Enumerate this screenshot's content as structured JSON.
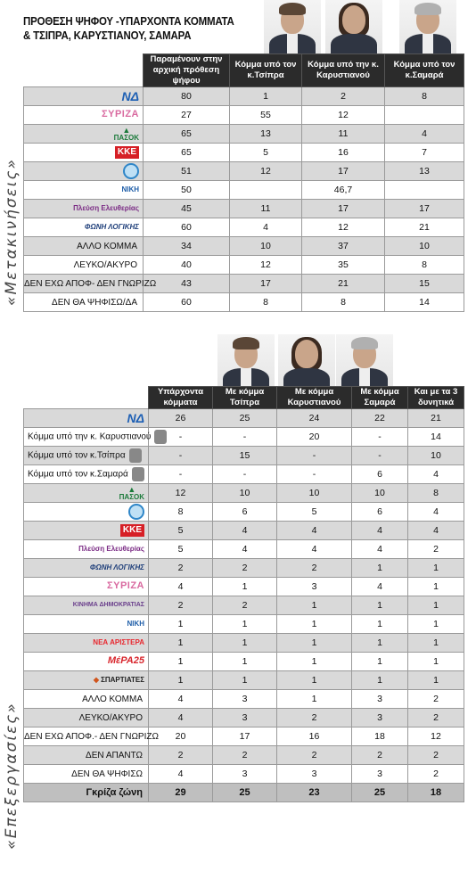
{
  "title_line1": "ΠΡΟΘΕΣΗ ΨΗΦΟΥ -ΥΠΑΡΧΟΝΤΑ ΚΟΜΜΑΤΑ",
  "title_line2": "& ΤΣΙΠΡΑ, ΚΑΡΥΣΤΙΑΝΟΥ, ΣΑΜΑΡΑ",
  "side_label_1": "«Μετακινήσεις»",
  "side_label_2": "«Επεξεργασίες»",
  "table1": {
    "headers": [
      "Παραμένουν στην αρχική πρόθεση ψήφου",
      "Κόμμα υπό τον κ.Τσίπρα",
      "Κόμμα υπό την κ. Καρυστιανού",
      "Κόμμα υπό τον κ.Σαμαρά"
    ],
    "rows": [
      {
        "label": "ΝΔ",
        "logo": "nd-logo",
        "values": [
          "80",
          "1",
          "2",
          "8"
        ]
      },
      {
        "label": "ΣΥΡΙΖΑ",
        "logo": "syriza-logo",
        "values": [
          "27",
          "55",
          "12",
          ""
        ]
      },
      {
        "label": "ΠΑΣΟΚ",
        "logo": "pasok-logo",
        "values": [
          "65",
          "13",
          "11",
          "4"
        ]
      },
      {
        "label": "ΚΚΕ",
        "logo": "kke-logo",
        "values": [
          "65",
          "5",
          "16",
          "7"
        ]
      },
      {
        "label": "ΕΛΛΗΝΙΚΗ ΛΥΣΗ",
        "logo": "elliniki-lysi-logo",
        "values": [
          "51",
          "12",
          "17",
          "13"
        ]
      },
      {
        "label": "ΝΙΚΗ",
        "logo": "niki-logo",
        "values": [
          "50",
          "",
          "46,7",
          ""
        ]
      },
      {
        "label": "Πλεύση Ελευθερίας",
        "logo": "plefsi-logo",
        "values": [
          "45",
          "11",
          "17",
          "17"
        ]
      },
      {
        "label": "ΦΩΝΗ ΛΟΓΙΚΗΣ",
        "logo": "foni-logikis-logo",
        "values": [
          "60",
          "4",
          "12",
          "21"
        ]
      },
      {
        "label": "ΑΛΛΟ ΚΟΜΜΑ",
        "logo": "",
        "values": [
          "34",
          "10",
          "37",
          "10"
        ]
      },
      {
        "label": "ΛΕΥΚΟ/ΑΚΥΡΟ",
        "logo": "",
        "values": [
          "40",
          "12",
          "35",
          "8"
        ]
      },
      {
        "label": "ΔΕΝ ΕΧΩ ΑΠΟΦ- ΔΕΝ ΓΝΩΡΙΖΩ",
        "logo": "",
        "values": [
          "43",
          "17",
          "21",
          "15"
        ]
      },
      {
        "label": "ΔΕΝ ΘΑ ΨΗΦΙΣΩ/ΔΑ",
        "logo": "",
        "values": [
          "60",
          "8",
          "8",
          "14"
        ]
      }
    ]
  },
  "table2": {
    "headers": [
      "Υπάρχοντα κόμματα",
      "Με κόμμα Τσίπρα",
      "Με κόμμα Καρυστιανού",
      "Με κόμμα Σαμαρά",
      "Και με τα 3 δυνητικά"
    ],
    "rows": [
      {
        "label": "ΝΔ",
        "logo": "nd-logo",
        "values": [
          "26",
          "25",
          "24",
          "22",
          "21"
        ]
      },
      {
        "label": "Κόμμα υπό την κ. Καρυστιανού",
        "logo": "",
        "values": [
          "-",
          "-",
          "20",
          "-",
          "14"
        ]
      },
      {
        "label": "Κόμμα υπό τον κ.Τσίπρα",
        "logo": "",
        "values": [
          "-",
          "15",
          "-",
          "-",
          "10"
        ]
      },
      {
        "label": "Κόμμα υπό τον κ.Σαμαρά",
        "logo": "",
        "values": [
          "-",
          "-",
          "-",
          "6",
          "4"
        ]
      },
      {
        "label": "ΠΑΣΟΚ",
        "logo": "pasok-logo",
        "values": [
          "12",
          "10",
          "10",
          "10",
          "8"
        ]
      },
      {
        "label": "ΕΛΛΗΝΙΚΗ ΛΥΣΗ",
        "logo": "elliniki-lysi-logo",
        "values": [
          "8",
          "6",
          "5",
          "6",
          "4"
        ]
      },
      {
        "label": "ΚΚΕ",
        "logo": "kke-logo",
        "values": [
          "5",
          "4",
          "4",
          "4",
          "4"
        ]
      },
      {
        "label": "Πλεύση Ελευθερίας",
        "logo": "plefsi-logo",
        "values": [
          "5",
          "4",
          "4",
          "4",
          "2"
        ]
      },
      {
        "label": "ΦΩΝΗ ΛΟΓΙΚΗΣ",
        "logo": "foni-logikis-logo",
        "values": [
          "2",
          "2",
          "2",
          "1",
          "1"
        ]
      },
      {
        "label": "ΣΥΡΙΖΑ",
        "logo": "syriza-logo",
        "values": [
          "4",
          "1",
          "3",
          "4",
          "1"
        ]
      },
      {
        "label": "ΚΙΝΗΜΑ ΔΗΜΟΚΡΑΤΙΑΣ",
        "logo": "kinima-logo",
        "values": [
          "2",
          "2",
          "1",
          "1",
          "1"
        ]
      },
      {
        "label": "ΝΙΚΗ",
        "logo": "niki-logo",
        "values": [
          "1",
          "1",
          "1",
          "1",
          "1"
        ]
      },
      {
        "label": "ΝΕΑ ΑΡΙΣΤΕΡΑ",
        "logo": "nea-aristera-logo",
        "values": [
          "1",
          "1",
          "1",
          "1",
          "1"
        ]
      },
      {
        "label": "ΜέΡΑ25",
        "logo": "mera25-logo",
        "values": [
          "1",
          "1",
          "1",
          "1",
          "1"
        ]
      },
      {
        "label": "ΣΠΑΡΤΙΑΤΕΣ",
        "logo": "spartiates-logo",
        "values": [
          "1",
          "1",
          "1",
          "1",
          "1"
        ]
      },
      {
        "label": "ΑΛΛΟ ΚΟΜΜΑ",
        "logo": "",
        "values": [
          "4",
          "3",
          "1",
          "3",
          "2"
        ]
      },
      {
        "label": "ΛΕΥΚΟ/ΑΚΥΡΟ",
        "logo": "",
        "values": [
          "4",
          "3",
          "2",
          "3",
          "2"
        ]
      },
      {
        "label": "ΔΕΝ ΕΧΩ ΑΠΟΦ.- ΔΕΝ ΓΝΩΡΙΖΩ",
        "logo": "",
        "values": [
          "20",
          "17",
          "16",
          "18",
          "12"
        ]
      },
      {
        "label": "ΔΕΝ ΑΠΑΝΤΩ",
        "logo": "",
        "values": [
          "2",
          "2",
          "2",
          "2",
          "2"
        ]
      },
      {
        "label": "ΔΕΝ ΘΑ ΨΗΦΙΣΩ",
        "logo": "",
        "values": [
          "4",
          "3",
          "3",
          "3",
          "2"
        ]
      }
    ],
    "total": {
      "label": "Γκρίζα ζώνη",
      "values": [
        "29",
        "25",
        "23",
        "25",
        "18"
      ]
    }
  },
  "logo_text": {
    "nd-logo": "ΝΔ",
    "syriza-logo": "ΣΥΡΙΖΑ",
    "pasok-logo": "ΠΑΣΟΚ",
    "kke-logo": "ΚΚΕ",
    "elliniki-lysi-logo": "",
    "niki-logo": "ΝΙΚΗ",
    "plefsi-logo": "Πλεύση Ελευθερίας",
    "foni-logikis-logo": "ΦΩΝΗ ΛΟΓΙΚΗΣ",
    "kinima-logo": "ΚΙΝΗΜΑ ΔΗΜΟΚΡΑΤΙΑΣ",
    "nea-aristera-logo": "ΝΕΑ ΑΡΙΣΤΕΡΑ",
    "mera25-logo": "ΜέΡΑ25",
    "spartiates-logo": "ΣΠΑΡΤΙΑΤΕΣ"
  }
}
